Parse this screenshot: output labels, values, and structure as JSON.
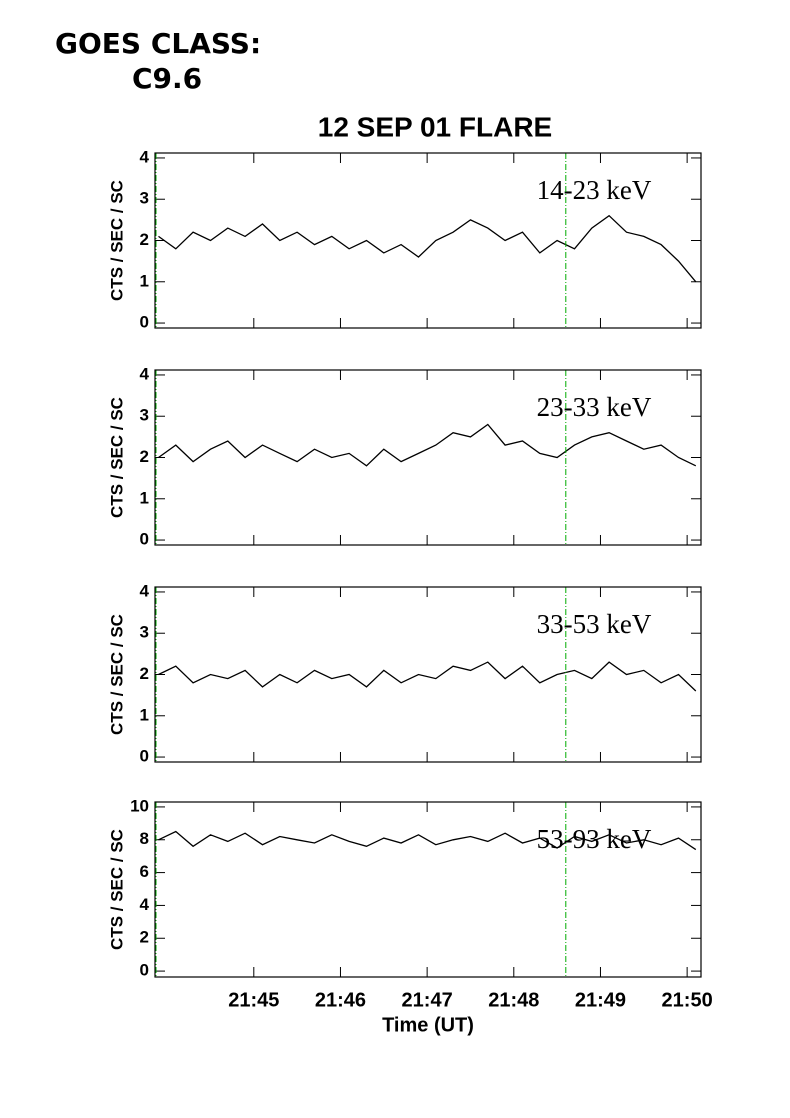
{
  "header": {
    "line1": "GOES CLASS:",
    "line2": "C9.6"
  },
  "chart_data": [
    {
      "type": "line",
      "title": "12 SEP 01 FLARE",
      "y_label": "CTS / SEC / SC",
      "x": [
        43.9,
        44.1,
        44.3,
        44.5,
        44.7,
        44.9,
        45.1,
        45.3,
        45.5,
        45.7,
        45.9,
        46.1,
        46.3,
        46.5,
        46.7,
        46.9,
        47.1,
        47.3,
        47.5,
        47.7,
        47.9,
        48.1,
        48.3,
        48.5,
        48.7,
        48.9,
        49.1,
        49.3,
        49.5,
        49.7,
        49.9,
        50.1
      ],
      "series": [
        {
          "name": "14-23 keV",
          "color": "#000000",
          "values": [
            2.1,
            1.8,
            2.2,
            2.0,
            2.3,
            2.1,
            2.4,
            2.0,
            2.2,
            1.9,
            2.1,
            1.8,
            2.0,
            1.7,
            1.9,
            1.6,
            2.0,
            2.2,
            2.5,
            2.3,
            2.0,
            2.2,
            1.7,
            2.0,
            1.8,
            2.3,
            2.6,
            2.2,
            2.1,
            1.9,
            1.5,
            1.0
          ]
        }
      ],
      "xlim": [
        43.86,
        50.16
      ],
      "xticks": [
        45,
        46,
        47,
        48,
        49,
        50
      ],
      "ylim": [
        -0.12,
        4.12
      ],
      "yticks": [
        0,
        1,
        2,
        3,
        4
      ],
      "marker_x": 48.6,
      "marker_color": "#00aa00"
    },
    {
      "type": "line",
      "y_label": "CTS / SEC / SC",
      "x": [
        43.9,
        44.1,
        44.3,
        44.5,
        44.7,
        44.9,
        45.1,
        45.3,
        45.5,
        45.7,
        45.9,
        46.1,
        46.3,
        46.5,
        46.7,
        46.9,
        47.1,
        47.3,
        47.5,
        47.7,
        47.9,
        48.1,
        48.3,
        48.5,
        48.7,
        48.9,
        49.1,
        49.3,
        49.5,
        49.7,
        49.9,
        50.1
      ],
      "series": [
        {
          "name": "23-33 keV",
          "color": "#000000",
          "values": [
            2.0,
            2.3,
            1.9,
            2.2,
            2.4,
            2.0,
            2.3,
            2.1,
            1.9,
            2.2,
            2.0,
            2.1,
            1.8,
            2.2,
            1.9,
            2.1,
            2.3,
            2.6,
            2.5,
            2.8,
            2.3,
            2.4,
            2.1,
            2.0,
            2.3,
            2.5,
            2.6,
            2.4,
            2.2,
            2.3,
            2.0,
            1.8
          ]
        }
      ],
      "xlim": [
        43.86,
        50.16
      ],
      "xticks": [
        45,
        46,
        47,
        48,
        49,
        50
      ],
      "ylim": [
        -0.12,
        4.12
      ],
      "yticks": [
        0,
        1,
        2,
        3,
        4
      ],
      "marker_x": 48.6,
      "marker_color": "#00aa00"
    },
    {
      "type": "line",
      "y_label": "CTS / SEC / SC",
      "x": [
        43.9,
        44.1,
        44.3,
        44.5,
        44.7,
        44.9,
        45.1,
        45.3,
        45.5,
        45.7,
        45.9,
        46.1,
        46.3,
        46.5,
        46.7,
        46.9,
        47.1,
        47.3,
        47.5,
        47.7,
        47.9,
        48.1,
        48.3,
        48.5,
        48.7,
        48.9,
        49.1,
        49.3,
        49.5,
        49.7,
        49.9,
        50.1
      ],
      "series": [
        {
          "name": "33-53 keV",
          "color": "#000000",
          "values": [
            2.0,
            2.2,
            1.8,
            2.0,
            1.9,
            2.1,
            1.7,
            2.0,
            1.8,
            2.1,
            1.9,
            2.0,
            1.7,
            2.1,
            1.8,
            2.0,
            1.9,
            2.2,
            2.1,
            2.3,
            1.9,
            2.2,
            1.8,
            2.0,
            2.1,
            1.9,
            2.3,
            2.0,
            2.1,
            1.8,
            2.0,
            1.6
          ]
        }
      ],
      "xlim": [
        43.86,
        50.16
      ],
      "xticks": [
        45,
        46,
        47,
        48,
        49,
        50
      ],
      "ylim": [
        -0.12,
        4.12
      ],
      "yticks": [
        0,
        1,
        2,
        3,
        4
      ],
      "marker_x": 48.6,
      "marker_color": "#00aa00"
    },
    {
      "type": "line",
      "y_label": "CTS / SEC / SC",
      "x_label": "Time (UT)",
      "x": [
        43.9,
        44.1,
        44.3,
        44.5,
        44.7,
        44.9,
        45.1,
        45.3,
        45.5,
        45.7,
        45.9,
        46.1,
        46.3,
        46.5,
        46.7,
        46.9,
        47.1,
        47.3,
        47.5,
        47.7,
        47.9,
        48.1,
        48.3,
        48.5,
        48.7,
        48.9,
        49.1,
        49.3,
        49.5,
        49.7,
        49.9,
        50.1
      ],
      "series": [
        {
          "name": "53-93 keV",
          "color": "#000000",
          "values": [
            8.0,
            8.5,
            7.6,
            8.3,
            7.9,
            8.4,
            7.7,
            8.2,
            8.0,
            7.8,
            8.3,
            7.9,
            7.6,
            8.1,
            7.8,
            8.3,
            7.7,
            8.0,
            8.2,
            7.9,
            8.4,
            7.8,
            8.1,
            7.5,
            8.2,
            7.9,
            8.3,
            7.8,
            8.0,
            7.7,
            8.1,
            7.4
          ]
        }
      ],
      "xlim": [
        43.86,
        50.16
      ],
      "xticks": [
        {
          "value": 45,
          "label": "21:45"
        },
        {
          "value": 46,
          "label": "21:46"
        },
        {
          "value": 47,
          "label": "21:47"
        },
        {
          "value": 48,
          "label": "21:48"
        },
        {
          "value": 49,
          "label": "21:49"
        },
        {
          "value": 50,
          "label": "21:50"
        }
      ],
      "ylim": [
        -0.36,
        10.3
      ],
      "yticks": [
        0,
        2,
        4,
        6,
        8,
        10
      ],
      "marker_x": 48.6,
      "marker_color": "#00aa00"
    }
  ]
}
